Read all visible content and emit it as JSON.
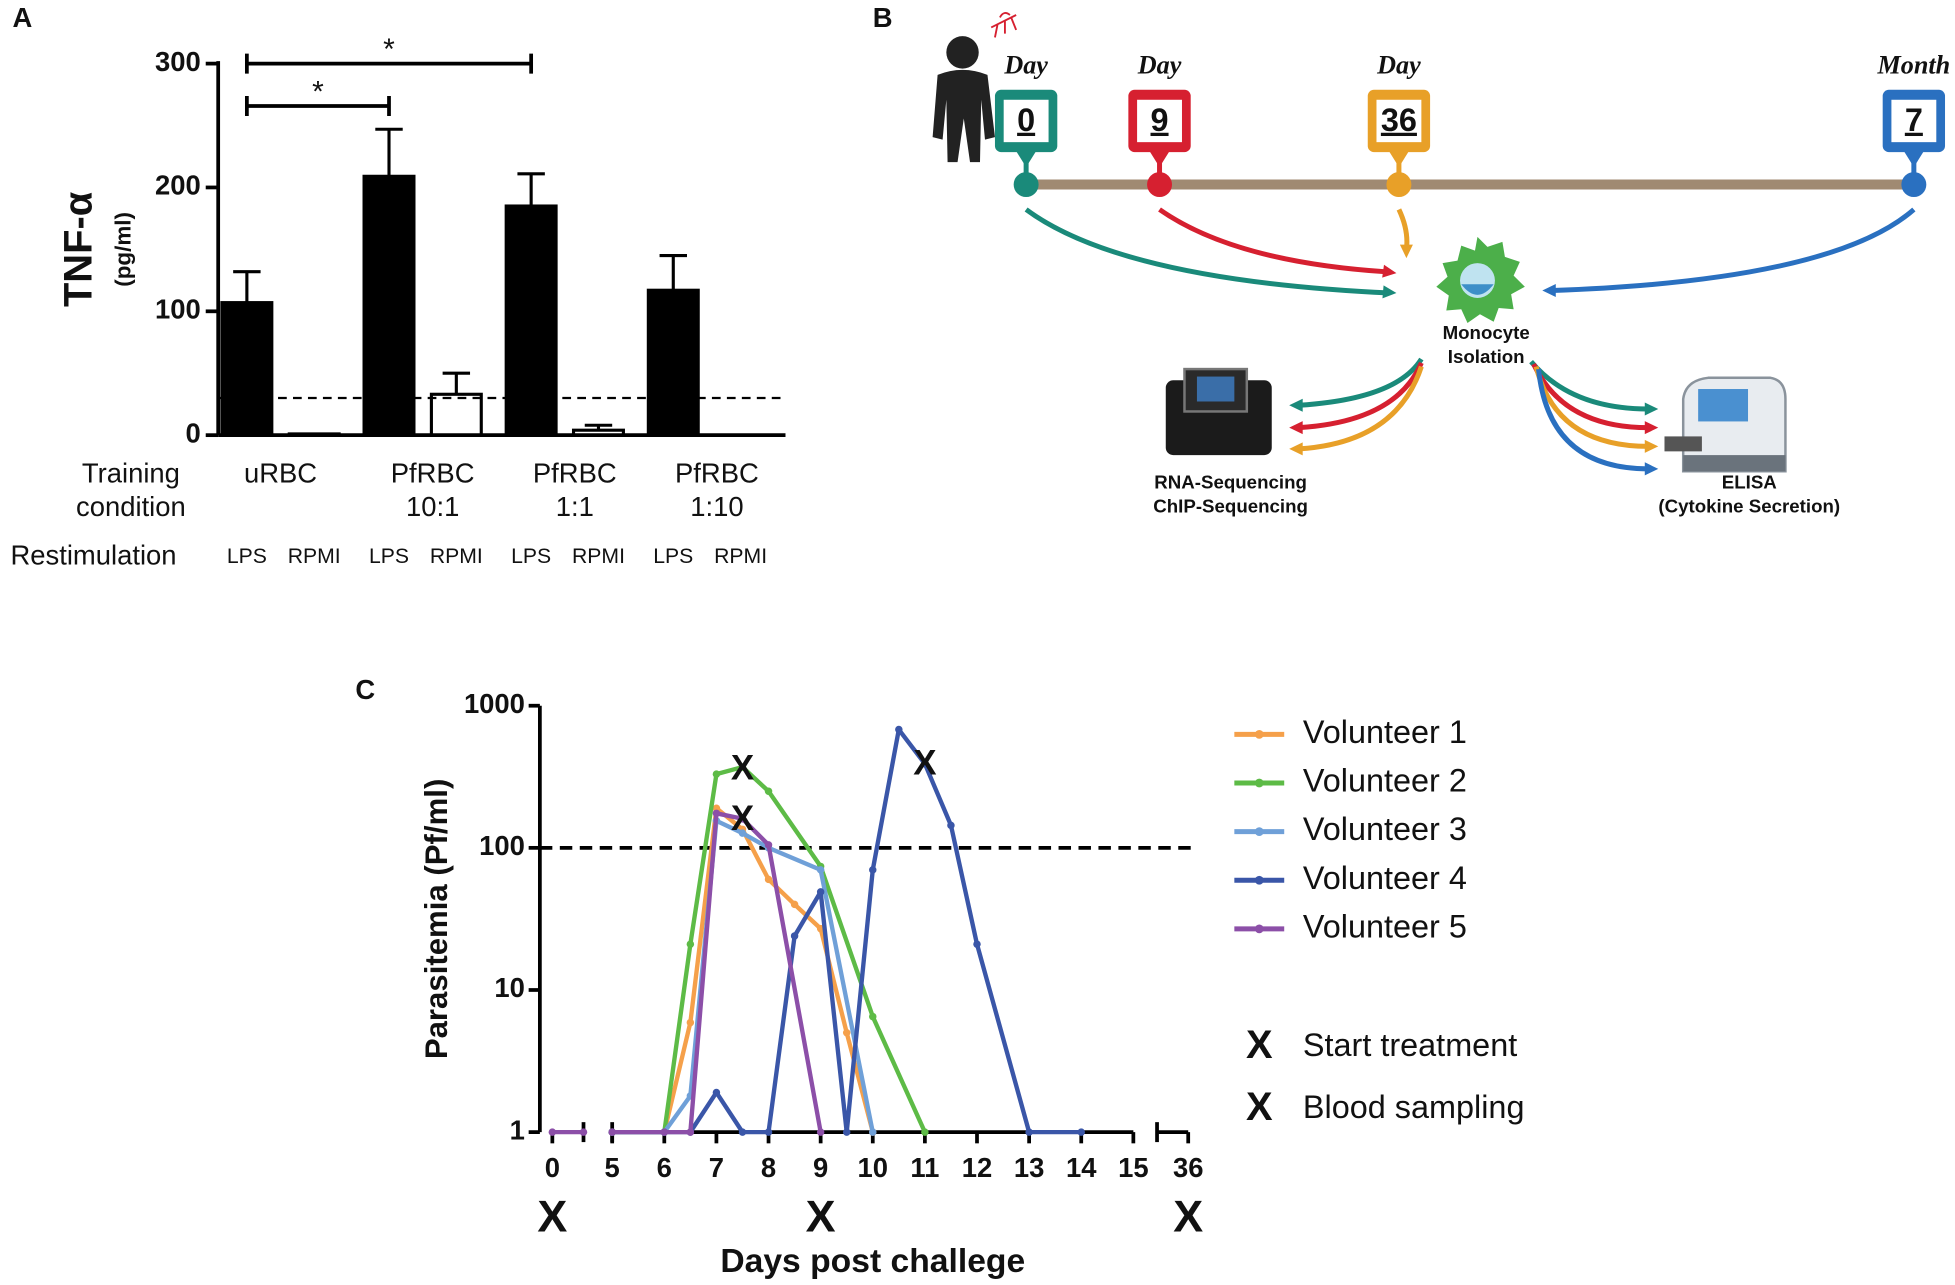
{
  "panel_labels": [
    "A",
    "B",
    "C"
  ],
  "chart_data": [
    {
      "type": "bar",
      "ylabel": "TNF-α",
      "ylabel_unit": "(pg/ml)",
      "categories": [
        "LPS",
        "RPMI",
        "LPS",
        "RPMI",
        "LPS",
        "RPMI",
        "LPS",
        "RPMI"
      ],
      "groups": [
        {
          "label": [
            "uRBC"
          ]
        },
        {
          "label": [
            "PfRBC",
            "10:1"
          ]
        },
        {
          "label": [
            "PfRBC",
            "1:1"
          ]
        },
        {
          "label": [
            "PfRBC",
            "1:10"
          ]
        }
      ],
      "row_labels": {
        "group": [
          "Training",
          "condition"
        ],
        "category": "Restimulation"
      },
      "values": [
        107,
        1,
        209,
        33,
        185,
        4,
        117,
        0
      ],
      "errors": [
        25,
        0,
        38,
        17,
        26,
        4,
        28,
        0
      ],
      "colors": [
        "#000000",
        "#ffffff",
        "#000000",
        "#ffffff",
        "#000000",
        "#ffffff",
        "#000000",
        "#ffffff"
      ],
      "ylim": [
        0,
        300
      ],
      "yticks": [
        0,
        100,
        200,
        300
      ],
      "reference_line": 30,
      "significance": [
        {
          "from": 0,
          "to": 2,
          "label": "*"
        },
        {
          "from": 0,
          "to": 4,
          "label": "*"
        }
      ]
    },
    {
      "type": "line",
      "ylabel": "Parasitemia (Pf/ml)",
      "xlabel": "Days post challege",
      "log_y": true,
      "ylim": [
        1,
        1000
      ],
      "yticks": [
        1,
        10,
        100,
        1000
      ],
      "xlim_segments": [
        [
          0,
          0.6
        ],
        [
          5,
          15
        ],
        [
          35.4,
          36
        ]
      ],
      "xticks": [
        0,
        5,
        6,
        7,
        8,
        9,
        10,
        11,
        12,
        13,
        14,
        15,
        36
      ],
      "reference_line": 100,
      "series": [
        {
          "name": "Volunteer 1",
          "color": "#f5a04a",
          "x": [
            5,
            6,
            6.5,
            7,
            7.5,
            8,
            8.5,
            9,
            9.5,
            10
          ],
          "values": [
            1,
            1,
            5.9,
            190,
            135,
            60,
            40,
            27,
            5,
            1
          ]
        },
        {
          "name": "Volunteer 2",
          "color": "#5dbb46",
          "x": [
            5,
            6,
            6.5,
            7,
            7.5,
            8,
            9,
            10,
            11
          ],
          "values": [
            1,
            1,
            21,
            330,
            370,
            250,
            74,
            6.5,
            1
          ]
        },
        {
          "name": "Volunteer 3",
          "color": "#6fa0d8",
          "x": [
            5,
            6,
            6.5,
            7,
            7.5,
            8,
            9,
            10
          ],
          "values": [
            1,
            1,
            1.8,
            155,
            127,
            100,
            70,
            1
          ]
        },
        {
          "name": "Volunteer 4",
          "color": "#3a56a8",
          "x": [
            5,
            6,
            6.5,
            7,
            7.5,
            8,
            8.5,
            9,
            9.5,
            10,
            10.5,
            11,
            11.5,
            12,
            13,
            14
          ],
          "values": [
            1,
            1,
            1,
            1.9,
            1,
            1,
            24,
            49,
            1,
            70,
            680,
            390,
            144,
            21,
            1,
            1
          ]
        },
        {
          "name": "Volunteer 5",
          "color": "#8c4fa8",
          "x": [
            0,
            0.6,
            5,
            6,
            6.5,
            7,
            7.5,
            8,
            9
          ],
          "values": [
            1,
            1,
            1,
            1,
            1,
            175,
            160,
            105,
            1
          ]
        }
      ],
      "markers": [
        {
          "name": "Start treatment",
          "symbol": "X",
          "color": "#111111",
          "x": [
            7.5,
            7.5,
            11
          ],
          "values": [
            350,
            155,
            380
          ]
        },
        {
          "name": "Blood sampling",
          "symbol": "X",
          "color": "#e8372a",
          "x": [
            0,
            9,
            36
          ]
        }
      ]
    }
  ],
  "diagram": {
    "timepoints": [
      {
        "unit": "Day",
        "number": "0",
        "color": "#1a8a7a"
      },
      {
        "unit": "Day",
        "number": "9",
        "color": "#d62030"
      },
      {
        "unit": "Day",
        "number": "36",
        "color": "#e8a028"
      },
      {
        "unit": "Month",
        "number": "7",
        "color": "#2a70c0"
      }
    ],
    "center": [
      "Monocyte",
      "Isolation"
    ],
    "left_output": [
      "RNA-Sequencing",
      "ChIP-Sequencing"
    ],
    "right_output": [
      "ELISA",
      "(Cytokine Secretion)"
    ]
  }
}
